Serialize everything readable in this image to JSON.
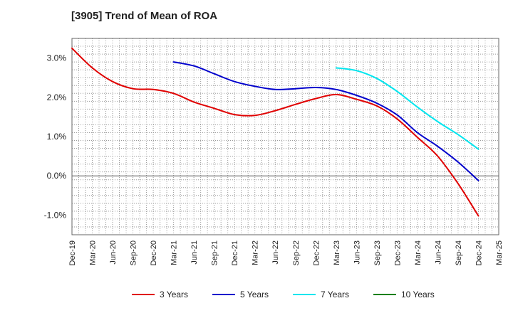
{
  "chart_data": {
    "type": "line",
    "title": "[3905]  Trend of Mean of ROA",
    "xlabel": "",
    "ylabel": "",
    "ylim": [
      -1.5,
      3.5
    ],
    "yticks": [
      3.0,
      2.0,
      1.0,
      0.0,
      -1.0
    ],
    "ytick_labels": [
      "3.0%",
      "2.0%",
      "1.0%",
      "0.0%",
      "-1.0%"
    ],
    "x_tick_labels": [
      "Dec-19",
      "Mar-20",
      "Jun-20",
      "Sep-20",
      "Dec-20",
      "Mar-21",
      "Jun-21",
      "Sep-21",
      "Dec-21",
      "Mar-22",
      "Jun-22",
      "Sep-22",
      "Dec-22",
      "Mar-23",
      "Jun-23",
      "Sep-23",
      "Dec-23",
      "Mar-24",
      "Jun-24",
      "Sep-24",
      "Dec-24",
      "Mar-25"
    ],
    "grid": true,
    "legend_position": "bottom",
    "series": [
      {
        "name": "3 Years",
        "color": "#e00000",
        "points": [
          [
            "Dec-19",
            3.25
          ],
          [
            "Mar-20",
            2.75
          ],
          [
            "Jun-20",
            2.4
          ],
          [
            "Sep-20",
            2.22
          ],
          [
            "Dec-20",
            2.2
          ],
          [
            "Mar-21",
            2.1
          ],
          [
            "Jun-21",
            1.88
          ],
          [
            "Sep-21",
            1.72
          ],
          [
            "Dec-21",
            1.56
          ],
          [
            "Mar-22",
            1.54
          ],
          [
            "Jun-22",
            1.66
          ],
          [
            "Sep-22",
            1.82
          ],
          [
            "Dec-22",
            1.97
          ],
          [
            "Mar-23",
            2.07
          ],
          [
            "Jun-23",
            1.95
          ],
          [
            "Sep-23",
            1.78
          ],
          [
            "Dec-23",
            1.45
          ],
          [
            "Mar-24",
            0.98
          ],
          [
            "Jun-24",
            0.5
          ],
          [
            "Sep-24",
            -0.2
          ],
          [
            "Dec-24",
            -1.02
          ]
        ]
      },
      {
        "name": "5 Years",
        "color": "#0000cc",
        "points": [
          [
            "Mar-21",
            2.9
          ],
          [
            "Jun-21",
            2.8
          ],
          [
            "Sep-21",
            2.6
          ],
          [
            "Dec-21",
            2.4
          ],
          [
            "Mar-22",
            2.28
          ],
          [
            "Jun-22",
            2.2
          ],
          [
            "Sep-22",
            2.22
          ],
          [
            "Dec-22",
            2.25
          ],
          [
            "Mar-23",
            2.2
          ],
          [
            "Jun-23",
            2.05
          ],
          [
            "Sep-23",
            1.85
          ],
          [
            "Dec-23",
            1.55
          ],
          [
            "Mar-24",
            1.1
          ],
          [
            "Jun-24",
            0.75
          ],
          [
            "Sep-24",
            0.35
          ],
          [
            "Dec-24",
            -0.12
          ]
        ]
      },
      {
        "name": "7 Years",
        "color": "#00e5ee",
        "points": [
          [
            "Mar-23",
            2.75
          ],
          [
            "Jun-23",
            2.68
          ],
          [
            "Sep-23",
            2.48
          ],
          [
            "Dec-23",
            2.15
          ],
          [
            "Mar-24",
            1.75
          ],
          [
            "Jun-24",
            1.38
          ],
          [
            "Sep-24",
            1.05
          ],
          [
            "Dec-24",
            0.68
          ]
        ]
      },
      {
        "name": "10 Years",
        "color": "#008000",
        "points": []
      }
    ]
  }
}
